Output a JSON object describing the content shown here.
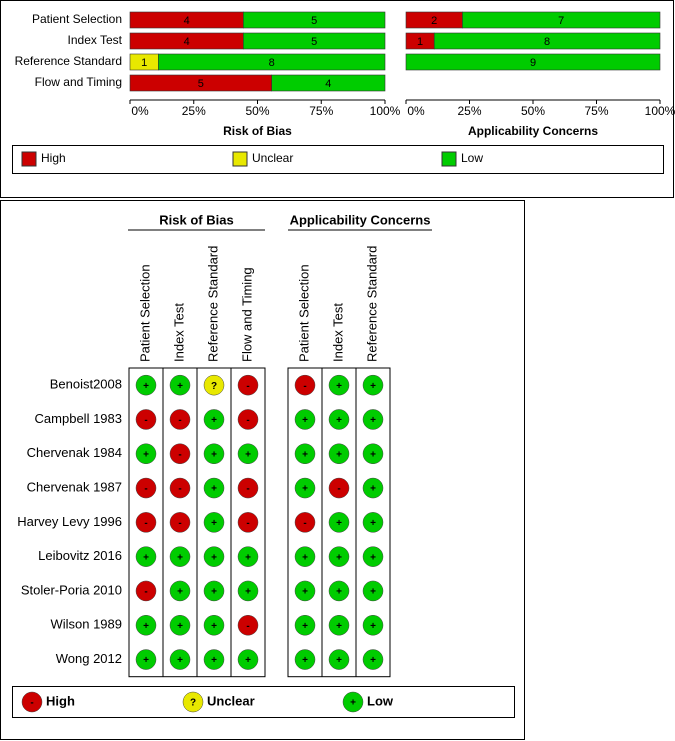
{
  "chart_data": [
    {
      "type": "stacked-barh",
      "xlabel": "Risk of Bias",
      "categories": [
        "Patient Selection",
        "Index Test",
        "Reference Standard",
        "Flow and Timing"
      ],
      "series": [
        {
          "name": "High",
          "color": "#cc0000",
          "values": [
            4,
            4,
            0,
            5
          ]
        },
        {
          "name": "Unclear",
          "color": "#e8e800",
          "values": [
            0,
            0,
            1,
            0
          ]
        },
        {
          "name": "Low",
          "color": "#00cc00",
          "values": [
            5,
            5,
            8,
            4
          ]
        }
      ],
      "xlim": [
        0,
        9
      ],
      "xticks": [
        {
          "value": 0,
          "label": "0%"
        },
        {
          "value": 2.25,
          "label": "25%"
        },
        {
          "value": 4.5,
          "label": "50%"
        },
        {
          "value": 6.75,
          "label": "75%"
        },
        {
          "value": 9,
          "label": "100%"
        }
      ]
    },
    {
      "type": "stacked-barh",
      "xlabel": "Applicability Concerns",
      "series": [
        {
          "color": "#cc0000",
          "values": [
            2,
            1,
            0
          ]
        },
        {
          "color": "#e8e800",
          "values": [
            0,
            0,
            0
          ]
        },
        {
          "color": "#00cc00",
          "values": [
            7,
            8,
            9
          ]
        }
      ],
      "xlim": [
        0,
        9
      ],
      "xticks": [
        {
          "value": 0,
          "label": "0%"
        },
        {
          "value": 2.25,
          "label": "25%"
        },
        {
          "value": 4.5,
          "label": "50%"
        },
        {
          "value": 6.75,
          "label": "75%"
        },
        {
          "value": 9,
          "label": "100%"
        }
      ]
    }
  ],
  "summary": {
    "groups": [
      {
        "title": "Risk of Bias",
        "columns": [
          "Patient Selection",
          "Index Test",
          "Reference Standard",
          "Flow and Timing"
        ]
      },
      {
        "title": "Applicability Concerns",
        "columns": [
          "Patient Selection",
          "Index Test",
          "Reference Standard"
        ]
      }
    ],
    "rows": [
      {
        "study": "Benoist2008",
        "judgements": [
          "+",
          "+",
          "?",
          "-",
          "-",
          "+",
          "+"
        ]
      },
      {
        "study": "Campbell 1983",
        "judgements": [
          "-",
          "-",
          "+",
          "-",
          "+",
          "+",
          "+"
        ]
      },
      {
        "study": "Chervenak 1984",
        "judgements": [
          "+",
          "-",
          "+",
          "+",
          "+",
          "+",
          "+"
        ]
      },
      {
        "study": "Chervenak 1987",
        "judgements": [
          "-",
          "-",
          "+",
          "-",
          "+",
          "-",
          "+"
        ]
      },
      {
        "study": "Harvey Levy 1996",
        "judgements": [
          "-",
          "-",
          "+",
          "-",
          "-",
          "+",
          "+"
        ]
      },
      {
        "study": "Leibovitz 2016",
        "judgements": [
          "+",
          "+",
          "+",
          "+",
          "+",
          "+",
          "+"
        ]
      },
      {
        "study": "Stoler-Poria 2010",
        "judgements": [
          "-",
          "+",
          "+",
          "+",
          "+",
          "+",
          "+"
        ]
      },
      {
        "study": "Wilson 1989",
        "judgements": [
          "+",
          "+",
          "+",
          "-",
          "+",
          "+",
          "+"
        ]
      },
      {
        "study": "Wong 2012",
        "judgements": [
          "+",
          "+",
          "+",
          "+",
          "+",
          "+",
          "+"
        ]
      }
    ],
    "legend": [
      {
        "symbol": "-",
        "label": "High",
        "color": "#cc0000"
      },
      {
        "symbol": "?",
        "label": "Unclear",
        "color": "#e8e800"
      },
      {
        "symbol": "+",
        "label": "Low",
        "color": "#00cc00"
      }
    ]
  }
}
